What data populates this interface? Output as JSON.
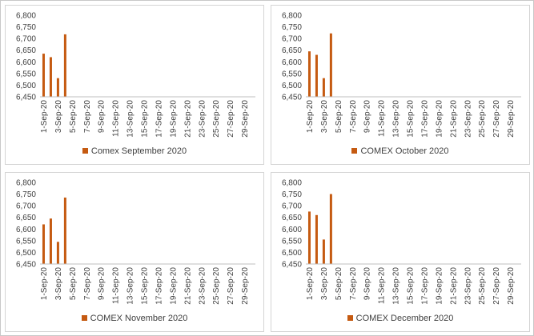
{
  "colors": {
    "bar": "#c55a11",
    "axis": "#bfbfbf"
  },
  "chart_data": [
    {
      "type": "bar",
      "categories": [
        "1-Sep-20",
        "2-Sep-20",
        "3-Sep-20",
        "4-Sep-20",
        "5-Sep-20",
        "6-Sep-20",
        "7-Sep-20",
        "8-Sep-20",
        "9-Sep-20",
        "10-Sep-20",
        "11-Sep-20",
        "12-Sep-20",
        "13-Sep-20",
        "14-Sep-20",
        "15-Sep-20",
        "16-Sep-20",
        "17-Sep-20",
        "18-Sep-20",
        "19-Sep-20",
        "20-Sep-20",
        "21-Sep-20",
        "22-Sep-20",
        "23-Sep-20",
        "24-Sep-20",
        "25-Sep-20",
        "26-Sep-20",
        "27-Sep-20",
        "28-Sep-20",
        "29-Sep-20",
        "30-Sep-20"
      ],
      "tick_labels": [
        "1-Sep-20",
        "3-Sep-20",
        "5-Sep-20",
        "7-Sep-20",
        "9-Sep-20",
        "11-Sep-20",
        "13-Sep-20",
        "15-Sep-20",
        "17-Sep-20",
        "19-Sep-20",
        "21-Sep-20",
        "23-Sep-20",
        "25-Sep-20",
        "27-Sep-20",
        "29-Sep-20"
      ],
      "series": [
        {
          "name": "Comex September 2020",
          "values": [
            6635,
            6620,
            6530,
            6718,
            null,
            null,
            null,
            null,
            null,
            null,
            null,
            null,
            null,
            null,
            null,
            null,
            null,
            null,
            null,
            null,
            null,
            null,
            null,
            null,
            null,
            null,
            null,
            null,
            null,
            null
          ]
        }
      ],
      "yticks": [
        "6,450",
        "6,500",
        "6,550",
        "6,600",
        "6,650",
        "6,700",
        "6,750",
        "6,800"
      ],
      "ylim": [
        6450,
        6800
      ],
      "legend": "bottom"
    },
    {
      "type": "bar",
      "categories": [
        "1-Sep-20",
        "2-Sep-20",
        "3-Sep-20",
        "4-Sep-20",
        "5-Sep-20",
        "6-Sep-20",
        "7-Sep-20",
        "8-Sep-20",
        "9-Sep-20",
        "10-Sep-20",
        "11-Sep-20",
        "12-Sep-20",
        "13-Sep-20",
        "14-Sep-20",
        "15-Sep-20",
        "16-Sep-20",
        "17-Sep-20",
        "18-Sep-20",
        "19-Sep-20",
        "20-Sep-20",
        "21-Sep-20",
        "22-Sep-20",
        "23-Sep-20",
        "24-Sep-20",
        "25-Sep-20",
        "26-Sep-20",
        "27-Sep-20",
        "28-Sep-20",
        "29-Sep-20",
        "30-Sep-20"
      ],
      "tick_labels": [
        "1-Sep-20",
        "3-Sep-20",
        "5-Sep-20",
        "7-Sep-20",
        "9-Sep-20",
        "11-Sep-20",
        "13-Sep-20",
        "15-Sep-20",
        "17-Sep-20",
        "19-Sep-20",
        "21-Sep-20",
        "23-Sep-20",
        "25-Sep-20",
        "27-Sep-20",
        "29-Sep-20"
      ],
      "series": [
        {
          "name": "COMEX October 2020",
          "values": [
            6645,
            6630,
            6530,
            6722,
            null,
            null,
            null,
            null,
            null,
            null,
            null,
            null,
            null,
            null,
            null,
            null,
            null,
            null,
            null,
            null,
            null,
            null,
            null,
            null,
            null,
            null,
            null,
            null,
            null,
            null
          ]
        }
      ],
      "yticks": [
        "6,450",
        "6,500",
        "6,550",
        "6,600",
        "6,650",
        "6,700",
        "6,750",
        "6,800"
      ],
      "ylim": [
        6450,
        6800
      ],
      "legend": "bottom"
    },
    {
      "type": "bar",
      "categories": [
        "1-Sep-20",
        "2-Sep-20",
        "3-Sep-20",
        "4-Sep-20",
        "5-Sep-20",
        "6-Sep-20",
        "7-Sep-20",
        "8-Sep-20",
        "9-Sep-20",
        "10-Sep-20",
        "11-Sep-20",
        "12-Sep-20",
        "13-Sep-20",
        "14-Sep-20",
        "15-Sep-20",
        "16-Sep-20",
        "17-Sep-20",
        "18-Sep-20",
        "19-Sep-20",
        "20-Sep-20",
        "21-Sep-20",
        "22-Sep-20",
        "23-Sep-20",
        "24-Sep-20",
        "25-Sep-20",
        "26-Sep-20",
        "27-Sep-20",
        "28-Sep-20",
        "29-Sep-20",
        "30-Sep-20"
      ],
      "tick_labels": [
        "1-Sep-20",
        "3-Sep-20",
        "5-Sep-20",
        "7-Sep-20",
        "9-Sep-20",
        "11-Sep-20",
        "13-Sep-20",
        "15-Sep-20",
        "17-Sep-20",
        "19-Sep-20",
        "21-Sep-20",
        "23-Sep-20",
        "25-Sep-20",
        "27-Sep-20",
        "29-Sep-20"
      ],
      "series": [
        {
          "name": "COMEX November 2020",
          "values": [
            6620,
            6645,
            6545,
            6735,
            null,
            null,
            null,
            null,
            null,
            null,
            null,
            null,
            null,
            null,
            null,
            null,
            null,
            null,
            null,
            null,
            null,
            null,
            null,
            null,
            null,
            null,
            null,
            null,
            null,
            null
          ]
        }
      ],
      "yticks": [
        "6,450",
        "6,500",
        "6,550",
        "6,600",
        "6,650",
        "6,700",
        "6,750",
        "6,800"
      ],
      "ylim": [
        6450,
        6800
      ],
      "legend": "bottom"
    },
    {
      "type": "bar",
      "categories": [
        "1-Sep-20",
        "2-Sep-20",
        "3-Sep-20",
        "4-Sep-20",
        "5-Sep-20",
        "6-Sep-20",
        "7-Sep-20",
        "8-Sep-20",
        "9-Sep-20",
        "10-Sep-20",
        "11-Sep-20",
        "12-Sep-20",
        "13-Sep-20",
        "14-Sep-20",
        "15-Sep-20",
        "16-Sep-20",
        "17-Sep-20",
        "18-Sep-20",
        "19-Sep-20",
        "20-Sep-20",
        "21-Sep-20",
        "22-Sep-20",
        "23-Sep-20",
        "24-Sep-20",
        "25-Sep-20",
        "26-Sep-20",
        "27-Sep-20",
        "28-Sep-20",
        "29-Sep-20",
        "30-Sep-20"
      ],
      "tick_labels": [
        "1-Sep-20",
        "3-Sep-20",
        "5-Sep-20",
        "7-Sep-20",
        "9-Sep-20",
        "11-Sep-20",
        "13-Sep-20",
        "15-Sep-20",
        "17-Sep-20",
        "19-Sep-20",
        "21-Sep-20",
        "23-Sep-20",
        "25-Sep-20",
        "27-Sep-20",
        "29-Sep-20"
      ],
      "series": [
        {
          "name": "COMEX December 2020",
          "values": [
            6675,
            6660,
            6555,
            6750,
            null,
            null,
            null,
            null,
            null,
            null,
            null,
            null,
            null,
            null,
            null,
            null,
            null,
            null,
            null,
            null,
            null,
            null,
            null,
            null,
            null,
            null,
            null,
            null,
            null,
            null
          ]
        }
      ],
      "yticks": [
        "6,450",
        "6,500",
        "6,550",
        "6,600",
        "6,650",
        "6,700",
        "6,750",
        "6,800"
      ],
      "ylim": [
        6450,
        6800
      ],
      "legend": "bottom"
    }
  ]
}
